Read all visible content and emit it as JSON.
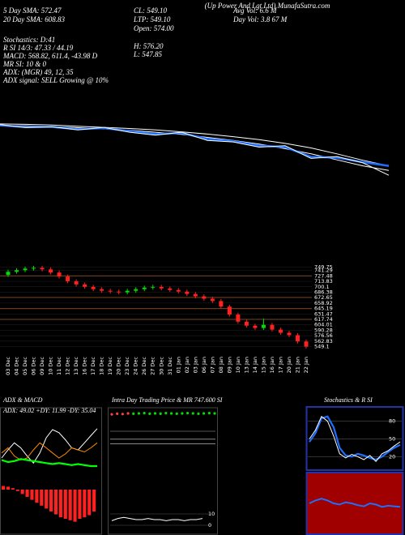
{
  "header": {
    "title": "(Up Power And Lgt Ltd) MunafaSutra.com",
    "left": [
      "5 Day SMA: 572.47",
      "20 Day SMA: 608.83",
      "Stochastics: D:41",
      "R SI 14/3: 47.33 / 44.19",
      "MACD: 568.82, 611.4, -43.98 D",
      "MR SI: 10 & 0",
      "ADX: (MGR) 49, 12, 35",
      "ADX signal: SELL Growing @ 10%"
    ],
    "mid": [
      "CL: 549.10",
      "LTP: 549.10",
      "Open: 574.00",
      "H: 576.20",
      "L: 547.85"
    ],
    "right": [
      "Avg Vol: 6.6 M",
      "Day Vol: 3.8 67 M"
    ]
  },
  "chart_data": [
    {
      "type": "line",
      "ylim": [
        520,
        780
      ],
      "series": [
        {
          "color": "#ffffff",
          "values": [
            752,
            751,
            749,
            746,
            743,
            740,
            736,
            731,
            725,
            718,
            710,
            700,
            688,
            672,
            655,
            640
          ]
        },
        {
          "color": "#ffffff",
          "values": [
            748,
            747,
            745,
            742,
            739,
            735,
            730,
            724,
            716,
            708,
            698,
            686,
            672,
            656,
            640,
            628
          ]
        },
        {
          "color": "#1f6fff",
          "values": [
            748,
            744,
            744,
            738,
            741,
            733,
            725,
            728,
            712,
            706,
            694,
            690,
            664,
            662,
            650,
            640
          ]
        },
        {
          "color": "#ffffff",
          "values": [
            750,
            742,
            745,
            736,
            743,
            730,
            722,
            730,
            708,
            704,
            690,
            694,
            660,
            665,
            648,
            615
          ]
        }
      ]
    },
    {
      "type": "candlestick",
      "ylim": [
        540,
        760
      ],
      "categories": [
        "03 Dec",
        "04 Dec",
        "05 Dec",
        "06 Dec",
        "09 Dec",
        "10 Dec",
        "11 Dec",
        "12 Dec",
        "13 Dec",
        "16 Dec",
        "17 Dec",
        "18 Dec",
        "19 Dec",
        "20 Dec",
        "23 Dec",
        "24 Dec",
        "26 Dec",
        "27 Dec",
        "30 Dec",
        "31 Dec",
        "01 Jan",
        "02 Jan",
        "03 Jan",
        "06 Jan",
        "07 Jan",
        "08 Jan",
        "09 Jan",
        "10 Jan",
        "13 Jan",
        "14 Jan",
        "15 Jan",
        "16 Jan",
        "17 Jan",
        "20 Jan",
        "21 Jan",
        "22 Jan"
      ],
      "open": [
        730,
        738,
        742,
        746,
        748,
        744,
        736,
        726,
        714,
        706,
        700,
        694,
        690,
        688,
        686,
        690,
        694,
        698,
        700,
        696,
        692,
        688,
        682,
        676,
        670,
        664,
        650,
        630,
        612,
        602,
        596,
        604,
        592,
        584,
        578,
        562
      ],
      "high": [
        743,
        747,
        751,
        753,
        753,
        749,
        741,
        731,
        719,
        711,
        705,
        699,
        695,
        693,
        695,
        699,
        703,
        705,
        705,
        701,
        697,
        693,
        687,
        681,
        675,
        669,
        655,
        635,
        617,
        607,
        620,
        609,
        597,
        589,
        583,
        567
      ],
      "low": [
        725,
        733,
        737,
        741,
        739,
        731,
        721,
        709,
        701,
        695,
        689,
        685,
        683,
        681,
        681,
        685,
        689,
        693,
        691,
        687,
        683,
        677,
        671,
        665,
        659,
        645,
        625,
        607,
        597,
        591,
        591,
        587,
        579,
        573,
        557,
        544
      ],
      "close": [
        738,
        742,
        746,
        748,
        744,
        736,
        726,
        714,
        706,
        700,
        694,
        690,
        688,
        686,
        690,
        694,
        698,
        700,
        696,
        692,
        688,
        682,
        676,
        670,
        664,
        650,
        630,
        612,
        602,
        596,
        604,
        592,
        584,
        578,
        562,
        549
      ],
      "yticks": [
        749.75,
        741.29,
        727.48,
        713.83,
        700.1,
        686.38,
        672.65,
        658.92,
        645.19,
        631.47,
        617.74,
        604.01,
        590.28,
        576.56,
        562.83,
        549.1
      ],
      "hlines": [
        727.48,
        672.65,
        645.19,
        617.74
      ]
    },
    {
      "type": "line",
      "title": "ADX & MACD",
      "subtitle": "ADX: 49.02 +DY: 11.99 -DY: 35.04",
      "ylim": [
        0,
        60
      ],
      "series": [
        {
          "color": "#ffffff",
          "values": [
            20,
            28,
            35,
            30,
            22,
            15,
            25,
            40,
            48,
            45,
            38,
            30,
            28,
            35,
            42,
            49
          ]
        },
        {
          "color": "#ff8c00",
          "values": [
            25,
            30,
            22,
            18,
            20,
            28,
            35,
            30,
            25,
            20,
            24,
            30,
            28,
            26,
            30,
            35
          ]
        },
        {
          "color": "#00ff00",
          "values": [
            18,
            16,
            17,
            19,
            18,
            17,
            16,
            15,
            14,
            15,
            14,
            13,
            14,
            13,
            12,
            12
          ]
        }
      ],
      "macd": {
        "ylim": [
          -60,
          10
        ],
        "values": [
          5,
          4,
          2,
          -2,
          -6,
          -10,
          -14,
          -18,
          -22,
          -26,
          -30,
          -34,
          -38,
          -40,
          -42,
          -44,
          -40,
          -38,
          -35,
          -30
        ]
      }
    },
    {
      "type": "scatter",
      "title": "Intra Day Trading Price & MR 747.600 SI",
      "ylim": [
        540,
        760
      ],
      "values": [
        744,
        746,
        745,
        747,
        746,
        747,
        748,
        746,
        747,
        746,
        748,
        747,
        746,
        747,
        748,
        747,
        746,
        747,
        748,
        747
      ],
      "levels": [
        690,
        665,
        650
      ],
      "lower": {
        "ylim": [
          0,
          20
        ],
        "yticks": [
          10,
          0
        ],
        "values": [
          4,
          6,
          7,
          6,
          5,
          5,
          6,
          5,
          5,
          4,
          5,
          5,
          4,
          5,
          5,
          6
        ]
      }
    },
    {
      "type": "line",
      "title": "Stochastics & R SI",
      "ylim": [
        0,
        100
      ],
      "yticks": [
        20,
        50,
        80
      ],
      "series": [
        {
          "color": "#1f6fff",
          "values": [
            45,
            60,
            85,
            88,
            70,
            35,
            22,
            20,
            25,
            22,
            18,
            15,
            20,
            28,
            35,
            40
          ]
        },
        {
          "color": "#ffffff",
          "values": [
            50,
            65,
            88,
            80,
            55,
            25,
            18,
            24,
            20,
            15,
            22,
            12,
            25,
            30,
            38,
            45
          ]
        }
      ],
      "rsi": {
        "ylim": [
          0,
          100
        ],
        "values": [
          50,
          55,
          58,
          55,
          50,
          48,
          52,
          50,
          47,
          45,
          50,
          48,
          44,
          46,
          45,
          44
        ]
      }
    }
  ]
}
